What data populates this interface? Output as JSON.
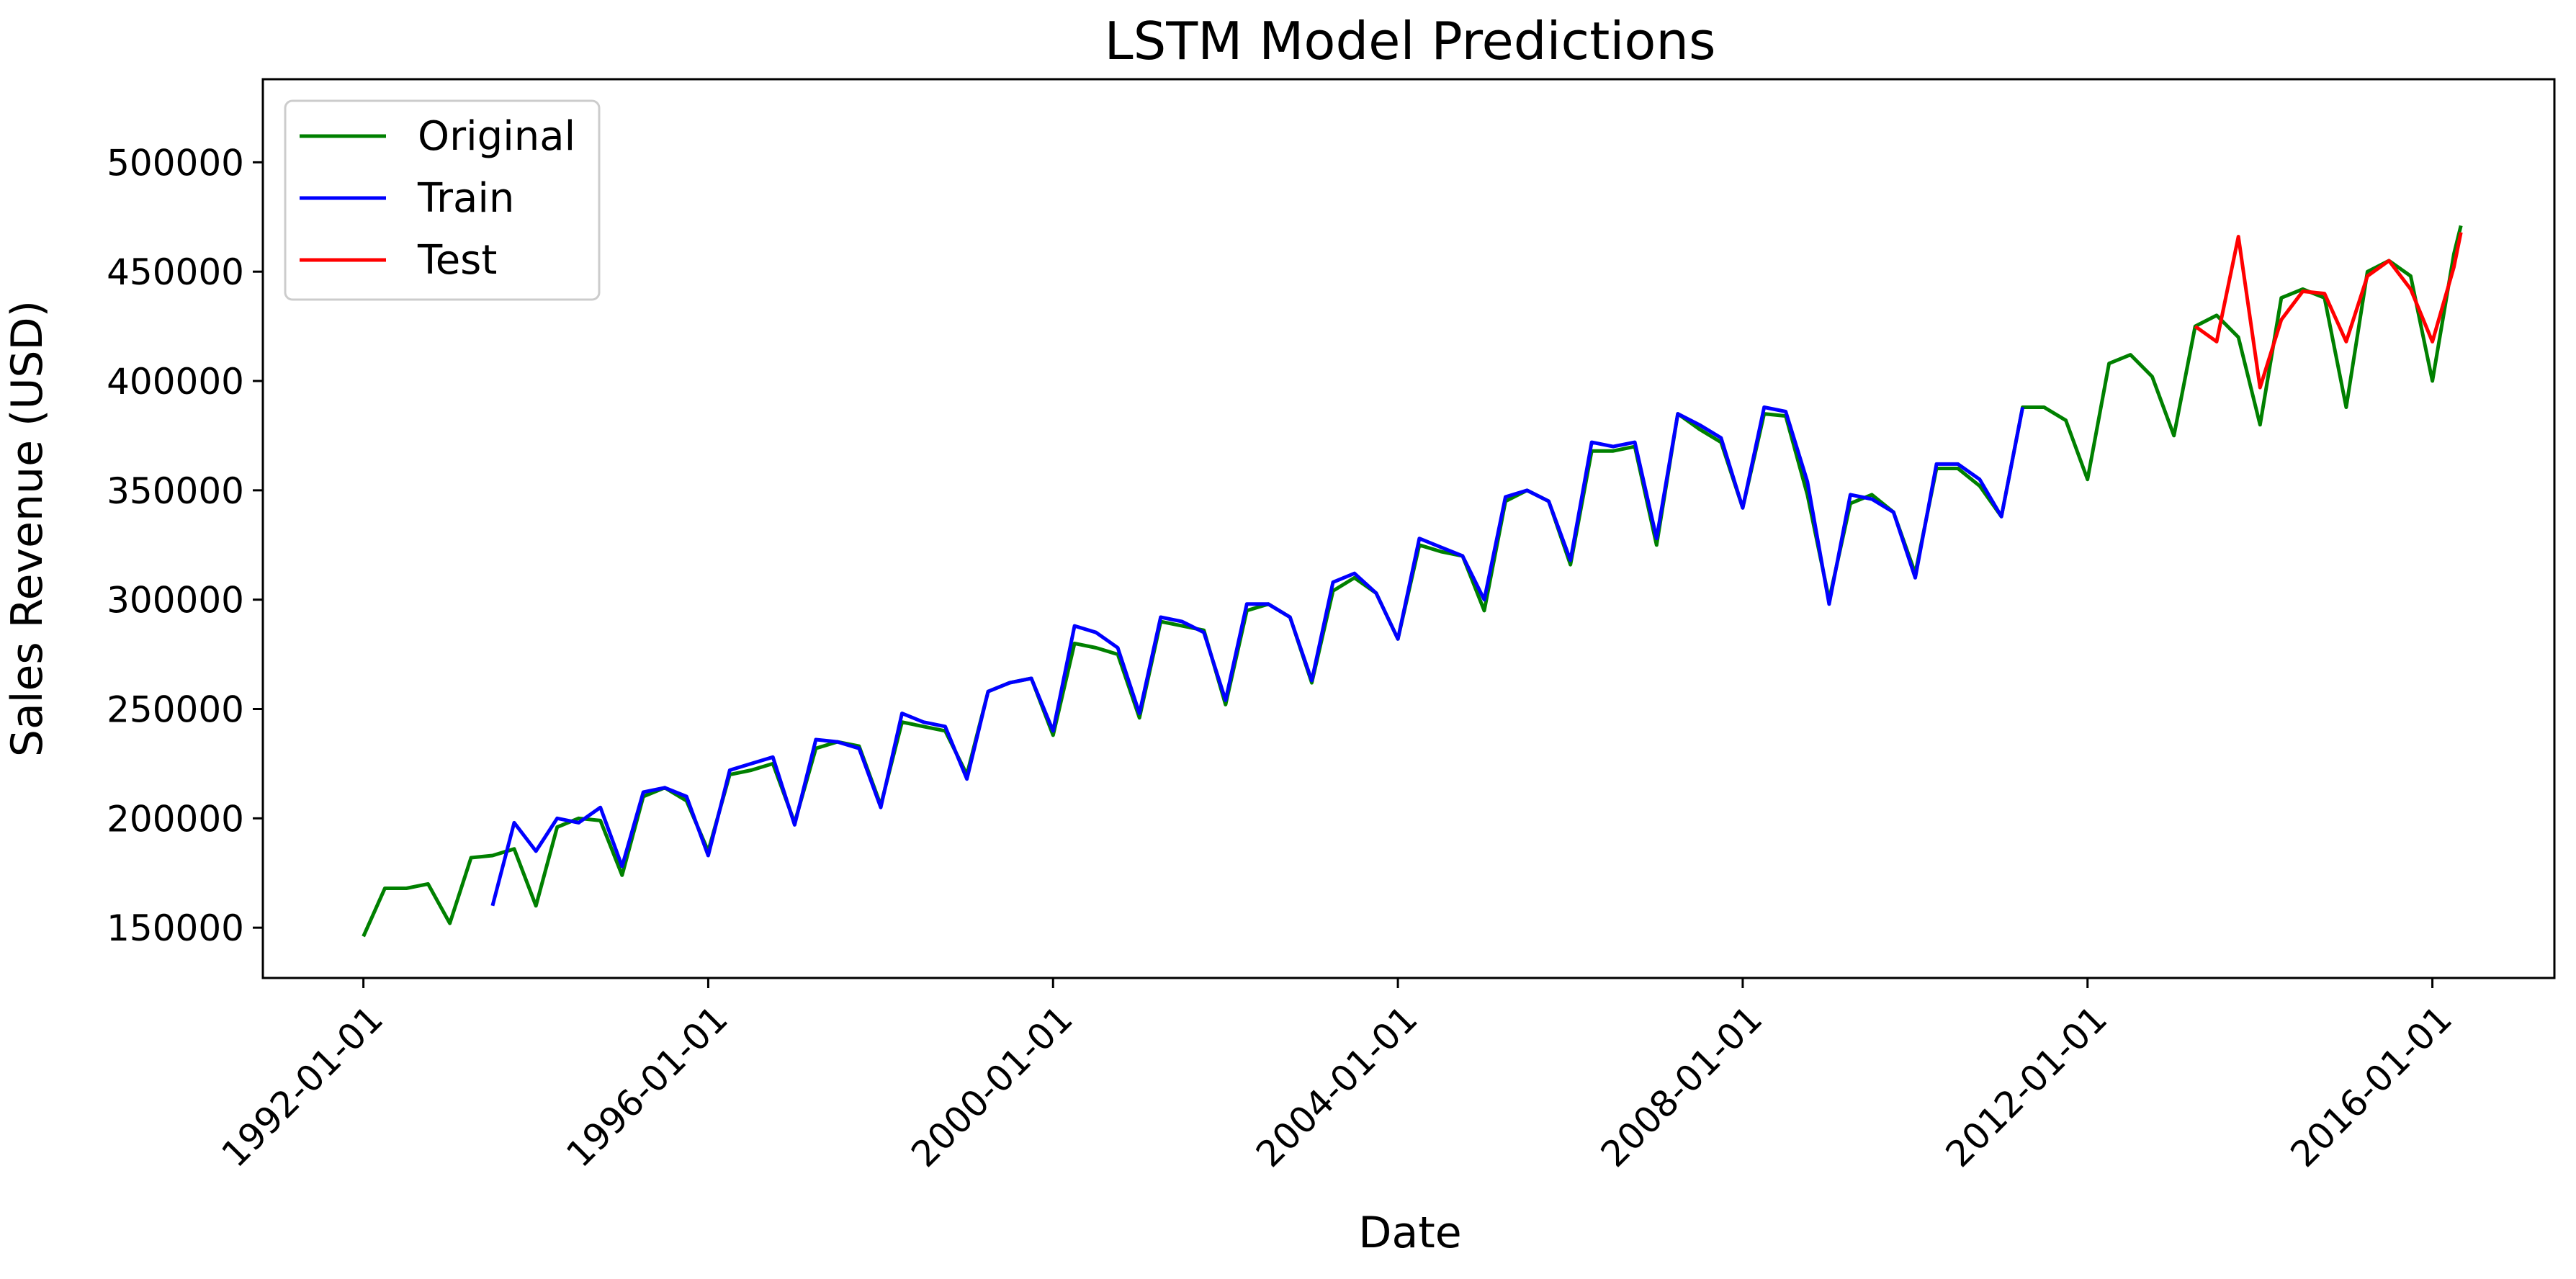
{
  "chart_data": {
    "type": "line",
    "title": "LSTM Model Predictions",
    "xlabel": "Date",
    "ylabel": "Sales Revenue (USD)",
    "x_range": [
      "1990-11-01",
      "2017-06-01"
    ],
    "ylim": [
      127000,
      538000
    ],
    "x_ticks": [
      "1992-01-01",
      "1996-01-01",
      "2000-01-01",
      "2004-01-01",
      "2008-01-01",
      "2012-01-01",
      "2016-01-01"
    ],
    "y_ticks": [
      150000,
      200000,
      250000,
      300000,
      350000,
      400000,
      450000,
      500000
    ],
    "grid": false,
    "legend_position": "upper-left",
    "series": [
      {
        "name": "Original",
        "color": "#008000",
        "values": [
          [
            "1992-01-01",
            146000
          ],
          [
            "1992-04-01",
            168000
          ],
          [
            "1992-07-01",
            168000
          ],
          [
            "1992-10-01",
            170000
          ],
          [
            "1993-01-01",
            152000
          ],
          [
            "1993-04-01",
            182000
          ],
          [
            "1993-07-01",
            183000
          ],
          [
            "1993-10-01",
            186000
          ],
          [
            "1994-01-01",
            160000
          ],
          [
            "1994-04-01",
            196000
          ],
          [
            "1994-07-01",
            200000
          ],
          [
            "1994-10-01",
            199000
          ],
          [
            "1995-01-01",
            174000
          ],
          [
            "1995-04-01",
            210000
          ],
          [
            "1995-07-01",
            214000
          ],
          [
            "1995-10-01",
            208000
          ],
          [
            "1996-01-01",
            185000
          ],
          [
            "1996-04-01",
            220000
          ],
          [
            "1996-07-01",
            222000
          ],
          [
            "1996-10-01",
            225000
          ],
          [
            "1997-01-01",
            198000
          ],
          [
            "1997-04-01",
            232000
          ],
          [
            "1997-07-01",
            235000
          ],
          [
            "1997-10-01",
            233000
          ],
          [
            "1998-01-01",
            206000
          ],
          [
            "1998-04-01",
            244000
          ],
          [
            "1998-07-01",
            242000
          ],
          [
            "1998-10-01",
            240000
          ],
          [
            "1999-01-01",
            220000
          ],
          [
            "1999-04-01",
            258000
          ],
          [
            "1999-07-01",
            262000
          ],
          [
            "1999-10-01",
            264000
          ],
          [
            "2000-01-01",
            238000
          ],
          [
            "2000-04-01",
            280000
          ],
          [
            "2000-07-01",
            278000
          ],
          [
            "2000-10-01",
            275000
          ],
          [
            "2001-01-01",
            246000
          ],
          [
            "2001-04-01",
            290000
          ],
          [
            "2001-07-01",
            288000
          ],
          [
            "2001-10-01",
            286000
          ],
          [
            "2002-01-01",
            252000
          ],
          [
            "2002-04-01",
            295000
          ],
          [
            "2002-07-01",
            298000
          ],
          [
            "2002-10-01",
            292000
          ],
          [
            "2003-01-01",
            262000
          ],
          [
            "2003-04-01",
            304000
          ],
          [
            "2003-07-01",
            310000
          ],
          [
            "2003-10-01",
            303000
          ],
          [
            "2004-01-01",
            282000
          ],
          [
            "2004-04-01",
            325000
          ],
          [
            "2004-07-01",
            322000
          ],
          [
            "2004-10-01",
            320000
          ],
          [
            "2005-01-01",
            295000
          ],
          [
            "2005-04-01",
            345000
          ],
          [
            "2005-07-01",
            350000
          ],
          [
            "2005-10-01",
            345000
          ],
          [
            "2006-01-01",
            316000
          ],
          [
            "2006-04-01",
            368000
          ],
          [
            "2006-07-01",
            368000
          ],
          [
            "2006-10-01",
            370000
          ],
          [
            "2007-01-01",
            325000
          ],
          [
            "2007-04-01",
            385000
          ],
          [
            "2007-07-01",
            378000
          ],
          [
            "2007-10-01",
            372000
          ],
          [
            "2008-01-01",
            342000
          ],
          [
            "2008-04-01",
            385000
          ],
          [
            "2008-07-01",
            384000
          ],
          [
            "2008-10-01",
            348000
          ],
          [
            "2009-01-01",
            300000
          ],
          [
            "2009-04-01",
            344000
          ],
          [
            "2009-07-01",
            348000
          ],
          [
            "2009-10-01",
            340000
          ],
          [
            "2010-01-01",
            312000
          ],
          [
            "2010-04-01",
            360000
          ],
          [
            "2010-07-01",
            360000
          ],
          [
            "2010-10-01",
            352000
          ],
          [
            "2011-01-01",
            338000
          ],
          [
            "2011-04-01",
            388000
          ],
          [
            "2011-07-01",
            388000
          ],
          [
            "2011-10-01",
            382000
          ],
          [
            "2012-01-01",
            355000
          ],
          [
            "2012-04-01",
            408000
          ],
          [
            "2012-07-01",
            412000
          ],
          [
            "2012-10-01",
            402000
          ],
          [
            "2013-01-01",
            375000
          ],
          [
            "2013-04-01",
            425000
          ],
          [
            "2013-07-01",
            430000
          ],
          [
            "2013-10-01",
            420000
          ],
          [
            "2014-01-01",
            380000
          ],
          [
            "2014-04-01",
            438000
          ],
          [
            "2014-07-01",
            442000
          ],
          [
            "2014-10-01",
            438000
          ],
          [
            "2015-01-01",
            388000
          ],
          [
            "2015-04-01",
            450000
          ],
          [
            "2015-07-01",
            455000
          ],
          [
            "2015-10-01",
            448000
          ],
          [
            "2016-01-01",
            400000
          ],
          [
            "2016-04-01",
            458000
          ],
          [
            "2016-05-01",
            471000
          ]
        ]
      },
      {
        "name": "Train",
        "color": "#0000ff",
        "values": [
          [
            "1993-07-01",
            160000
          ],
          [
            "1993-10-01",
            198000
          ],
          [
            "1994-01-01",
            185000
          ],
          [
            "1994-04-01",
            200000
          ],
          [
            "1994-07-01",
            198000
          ],
          [
            "1994-10-01",
            205000
          ],
          [
            "1995-01-01",
            178000
          ],
          [
            "1995-04-01",
            212000
          ],
          [
            "1995-07-01",
            214000
          ],
          [
            "1995-10-01",
            210000
          ],
          [
            "1996-01-01",
            183000
          ],
          [
            "1996-04-01",
            222000
          ],
          [
            "1996-07-01",
            225000
          ],
          [
            "1996-10-01",
            228000
          ],
          [
            "1997-01-01",
            197000
          ],
          [
            "1997-04-01",
            236000
          ],
          [
            "1997-07-01",
            235000
          ],
          [
            "1997-10-01",
            232000
          ],
          [
            "1998-01-01",
            205000
          ],
          [
            "1998-04-01",
            248000
          ],
          [
            "1998-07-01",
            244000
          ],
          [
            "1998-10-01",
            242000
          ],
          [
            "1999-01-01",
            218000
          ],
          [
            "1999-04-01",
            258000
          ],
          [
            "1999-07-01",
            262000
          ],
          [
            "1999-10-01",
            264000
          ],
          [
            "2000-01-01",
            240000
          ],
          [
            "2000-04-01",
            288000
          ],
          [
            "2000-07-01",
            285000
          ],
          [
            "2000-10-01",
            278000
          ],
          [
            "2001-01-01",
            248000
          ],
          [
            "2001-04-01",
            292000
          ],
          [
            "2001-07-01",
            290000
          ],
          [
            "2001-10-01",
            285000
          ],
          [
            "2002-01-01",
            254000
          ],
          [
            "2002-04-01",
            298000
          ],
          [
            "2002-07-01",
            298000
          ],
          [
            "2002-10-01",
            292000
          ],
          [
            "2003-01-01",
            263000
          ],
          [
            "2003-04-01",
            308000
          ],
          [
            "2003-07-01",
            312000
          ],
          [
            "2003-10-01",
            303000
          ],
          [
            "2004-01-01",
            282000
          ],
          [
            "2004-04-01",
            328000
          ],
          [
            "2004-07-01",
            324000
          ],
          [
            "2004-10-01",
            320000
          ],
          [
            "2005-01-01",
            300000
          ],
          [
            "2005-04-01",
            347000
          ],
          [
            "2005-07-01",
            350000
          ],
          [
            "2005-10-01",
            345000
          ],
          [
            "2006-01-01",
            318000
          ],
          [
            "2006-04-01",
            372000
          ],
          [
            "2006-07-01",
            370000
          ],
          [
            "2006-10-01",
            372000
          ],
          [
            "2007-01-01",
            328000
          ],
          [
            "2007-04-01",
            385000
          ],
          [
            "2007-07-01",
            380000
          ],
          [
            "2007-10-01",
            374000
          ],
          [
            "2008-01-01",
            342000
          ],
          [
            "2008-04-01",
            388000
          ],
          [
            "2008-07-01",
            386000
          ],
          [
            "2008-10-01",
            354000
          ],
          [
            "2009-01-01",
            298000
          ],
          [
            "2009-04-01",
            348000
          ],
          [
            "2009-07-01",
            346000
          ],
          [
            "2009-10-01",
            340000
          ],
          [
            "2010-01-01",
            310000
          ],
          [
            "2010-04-01",
            362000
          ],
          [
            "2010-07-01",
            362000
          ],
          [
            "2010-10-01",
            355000
          ],
          [
            "2011-01-01",
            338000
          ],
          [
            "2011-04-01",
            388000
          ]
        ]
      },
      {
        "name": "Test",
        "color": "#ff0000",
        "values": [
          [
            "2013-04-01",
            425000
          ],
          [
            "2013-07-01",
            418000
          ],
          [
            "2013-10-01",
            466000
          ],
          [
            "2014-01-01",
            397000
          ],
          [
            "2014-04-01",
            428000
          ],
          [
            "2014-07-01",
            441000
          ],
          [
            "2014-10-01",
            440000
          ],
          [
            "2015-01-01",
            418000
          ],
          [
            "2015-04-01",
            448000
          ],
          [
            "2015-07-01",
            455000
          ],
          [
            "2015-10-01",
            442000
          ],
          [
            "2016-01-01",
            418000
          ],
          [
            "2016-04-01",
            452000
          ],
          [
            "2016-05-01",
            468000
          ]
        ]
      }
    ]
  }
}
